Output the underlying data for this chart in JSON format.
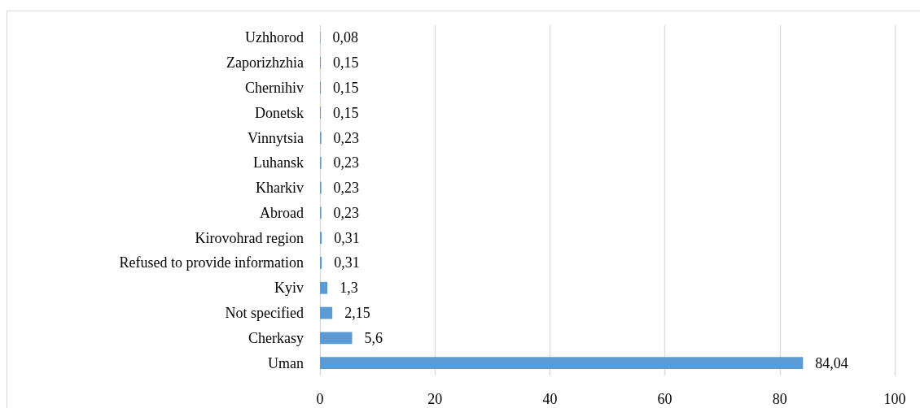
{
  "chart_data": {
    "type": "bar",
    "orientation": "horizontal",
    "categories": [
      "Uzhhorod",
      "Zaporizhzhia",
      "Chernihiv",
      "Donetsk",
      "Vinnytsia",
      "Luhansk",
      "Kharkiv",
      "Abroad",
      "Kirovohrad region",
      "Refused to provide information",
      "Kyiv",
      "Not specified",
      "Cherkasy",
      "Uman"
    ],
    "values": [
      0.08,
      0.15,
      0.15,
      0.15,
      0.23,
      0.23,
      0.23,
      0.23,
      0.31,
      0.31,
      1.3,
      2.15,
      5.6,
      84.04
    ],
    "value_labels": [
      "0,08",
      "0,15",
      "0,15",
      "0,15",
      "0,23",
      "0,23",
      "0,23",
      "0,23",
      "0,31",
      "0,31",
      "1,3",
      "2,15",
      "5,6",
      "84,04"
    ],
    "color": "#5b9bd5",
    "xlim": [
      0,
      100
    ],
    "xticks": [
      0,
      20,
      40,
      60,
      80,
      100
    ],
    "grid": "x"
  }
}
